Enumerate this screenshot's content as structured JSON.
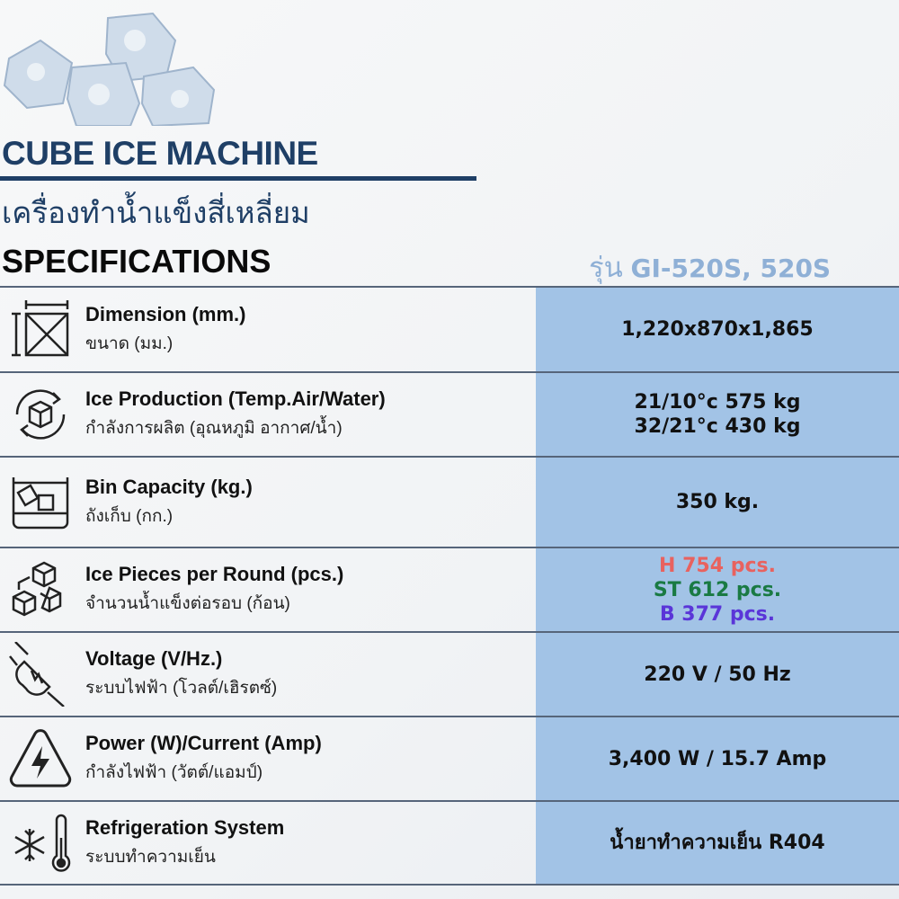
{
  "header": {
    "title": "CUBE ICE MACHINE",
    "subtitle_th": "เครื่องทำน้ำแข็งสี่เหลี่ยม",
    "section": "SPECIFICATIONS",
    "model_prefix": "รุ่น",
    "model": "GI-520S, 520S"
  },
  "colors": {
    "title": "#1f3f66",
    "value_column": "#a2c3e6",
    "model": "#8fb0d6",
    "pcs_h": "#e8625f",
    "pcs_st": "#1a7a43",
    "pcs_b": "#5a35d8"
  },
  "specs": [
    {
      "icon": "dimension-icon",
      "label_en": "Dimension (mm.)",
      "label_th": "ขนาด (มม.)",
      "values": [
        "1,220x870x1,865"
      ]
    },
    {
      "icon": "ice-production-cycle-icon",
      "label_en": "Ice Production (Temp.Air/Water)",
      "label_th": "กำลังการผลิต (อุณหภูมิ อากาศ/น้ำ)",
      "values": [
        "21/10°c 575 kg",
        "32/21°c 430 kg"
      ]
    },
    {
      "icon": "ice-bin-icon",
      "label_en": "Bin Capacity (kg.)",
      "label_th": "ถังเก็บ (กก.)",
      "values": [
        "350 kg."
      ]
    },
    {
      "icon": "ice-cubes-icon",
      "label_en": "Ice Pieces per Round (pcs.)",
      "label_th": "จำนวนน้ำแข็งต่อรอบ (ก้อน)",
      "values": [
        "H 754 pcs.",
        "ST 612 pcs.",
        "B 377 pcs."
      ]
    },
    {
      "icon": "plug-icon",
      "label_en": "Voltage (V/Hz.)",
      "label_th": "ระบบไฟฟ้า (โวลต์/เฮิรตซ์)",
      "values": [
        "220 V / 50 Hz"
      ]
    },
    {
      "icon": "high-voltage-icon",
      "label_en": "Power (W)/Current (Amp)",
      "label_th": "กำลังไฟฟ้า (วัตต์/แอมป์)",
      "values": [
        "3,400 W / 15.7 Amp"
      ]
    },
    {
      "icon": "snowflake-thermometer-icon",
      "label_en": "Refrigeration System",
      "label_th": "ระบบทำความเย็น",
      "values": [
        "น้ำยาทำความเย็น R404"
      ]
    }
  ]
}
